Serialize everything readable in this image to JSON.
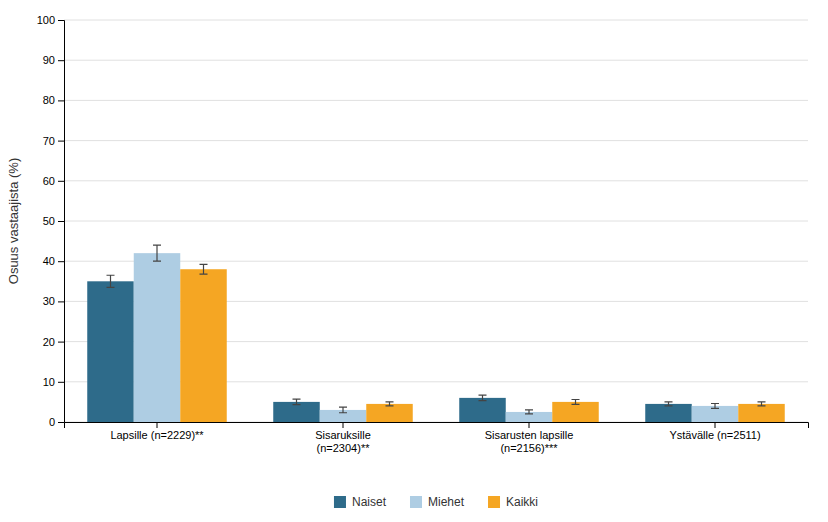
{
  "chart_data": {
    "type": "bar",
    "categories": [
      "Lapsille (n=2229)**",
      "Sisaruksille\n(n=2304)**",
      "Sisarusten lapsille\n(n=2156)***",
      "Ystävälle (n=2511)"
    ],
    "series": [
      {
        "name": "Naiset",
        "color": "#2E6B8A",
        "values": [
          35,
          5,
          6,
          4.5
        ],
        "errors": [
          1.5,
          0.7,
          0.7,
          0.5
        ]
      },
      {
        "name": "Miehet",
        "color": "#AECDE3",
        "values": [
          42,
          3,
          2.5,
          4
        ],
        "errors": [
          2.0,
          0.7,
          0.5,
          0.6
        ]
      },
      {
        "name": "Kaikki",
        "color": "#F5A623",
        "values": [
          38,
          4.5,
          5,
          4.5
        ],
        "errors": [
          1.2,
          0.5,
          0.6,
          0.5
        ]
      }
    ],
    "ylabel": "Osuus vastaajista (%)",
    "ylim": [
      0,
      100
    ],
    "yticks": [
      0,
      10,
      20,
      30,
      40,
      50,
      60,
      70,
      80,
      90,
      100
    ],
    "grid": true,
    "legend": "bottom"
  }
}
